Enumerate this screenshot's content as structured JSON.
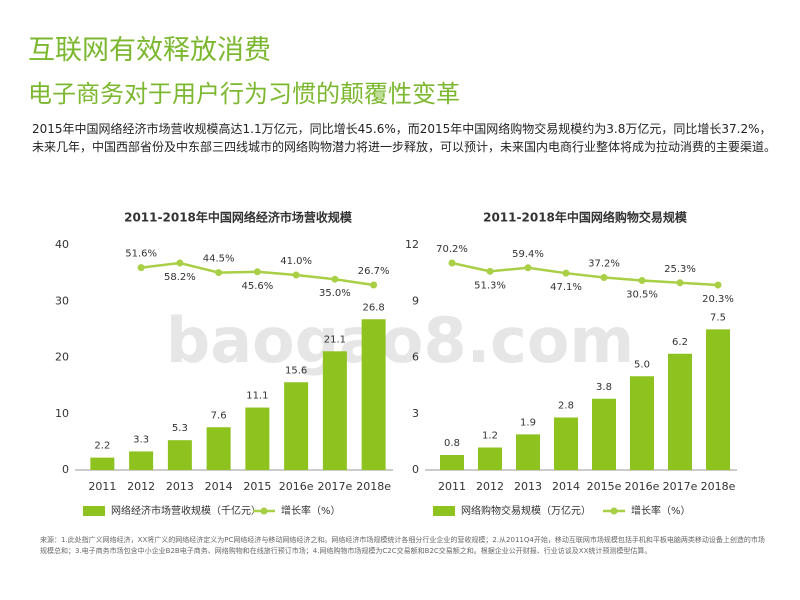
{
  "header": {
    "title": "互联网有效释放消费",
    "subtitle": "电子商务对于用户行为习惯的颠覆性变革",
    "paragraph": "2015年中国网络经济市场营收规模高达1.1万亿元，同比增长45.6%，而2015年中国网络购物交易规模约为3.8万亿元，同比增长37.2%，未来几年，中国西部省份及中东部三四线城市的网络购物潜力将进一步释放，可以预计，未来国内电商行业整体将成为拉动消费的主要渠道。"
  },
  "watermark": "baogao8.com",
  "chart_data": [
    {
      "type": "bar",
      "title": "2011-2018年中国网络经济市场营收规模",
      "categories": [
        "2011",
        "2012",
        "2013",
        "2014",
        "2015",
        "2016e",
        "2017e",
        "2018e"
      ],
      "series": [
        {
          "name": "网络经济市场营收规模（千亿元）",
          "color": "#8dc21f",
          "values": [
            2.2,
            3.3,
            5.3,
            7.6,
            11.1,
            15.6,
            21.1,
            26.8
          ],
          "value_labels": [
            "2.2",
            "3.3",
            "5.3",
            "7.6",
            "11.1",
            "15.6",
            "21.1",
            "26.8"
          ]
        },
        {
          "name": "增长率（%）",
          "type": "line",
          "color": "#a8cf45",
          "values": [
            null,
            51.6,
            58.2,
            44.5,
            45.6,
            41.0,
            35.0,
            26.7
          ],
          "value_labels": [
            null,
            "51.6%",
            "58.2%",
            "44.5%",
            "45.6%",
            "41.0%",
            "35.0%",
            "26.7%"
          ]
        }
      ],
      "ylim": [
        0,
        40
      ],
      "yticks": [
        0,
        10,
        20,
        30,
        40
      ]
    },
    {
      "type": "bar",
      "title": "2011-2018年中国网络购物交易规模",
      "categories": [
        "2011",
        "2012",
        "2013",
        "2014",
        "2015e",
        "2016e",
        "2017e",
        "2018e"
      ],
      "series": [
        {
          "name": "网络购物交易规模（万亿元）",
          "color": "#8dc21f",
          "values": [
            0.8,
            1.2,
            1.9,
            2.8,
            3.8,
            5.0,
            6.2,
            7.5
          ],
          "value_labels": [
            "0.8",
            "1.2",
            "1.9",
            "2.8",
            "3.8",
            "5.0",
            "6.2",
            "7.5"
          ]
        },
        {
          "name": "增长率（%）",
          "type": "line",
          "color": "#a8cf45",
          "values": [
            70.2,
            51.3,
            59.4,
            47.1,
            37.2,
            30.5,
            25.3,
            20.3
          ],
          "value_labels": [
            "70.2%",
            "51.3%",
            "59.4%",
            "47.1%",
            "37.2%",
            "30.5%",
            "25.3%",
            "20.3%"
          ]
        }
      ],
      "ylim": [
        0,
        12
      ],
      "yticks": [
        0,
        3,
        6,
        9,
        12
      ]
    }
  ],
  "footnote": "来源：1.此处指广义网络经济，XX将广义的网络经济定义为PC网络经济与移动网络经济之和。网络经济市场规模统计各细分行业企业的营收规模；2.从2011Q4开始，移动互联网市场规模包括手机和平板电脑两类移动设备上创造的市场规模总和；3.电子商务市场包含中小企业B2B电子商务、网络购物和在线旅行预订市场；4.网络购物市场规模为C2C交易额和B2C交易额之和。根据企业公开财报、行业访谈及XX统计预测模型估算。"
}
